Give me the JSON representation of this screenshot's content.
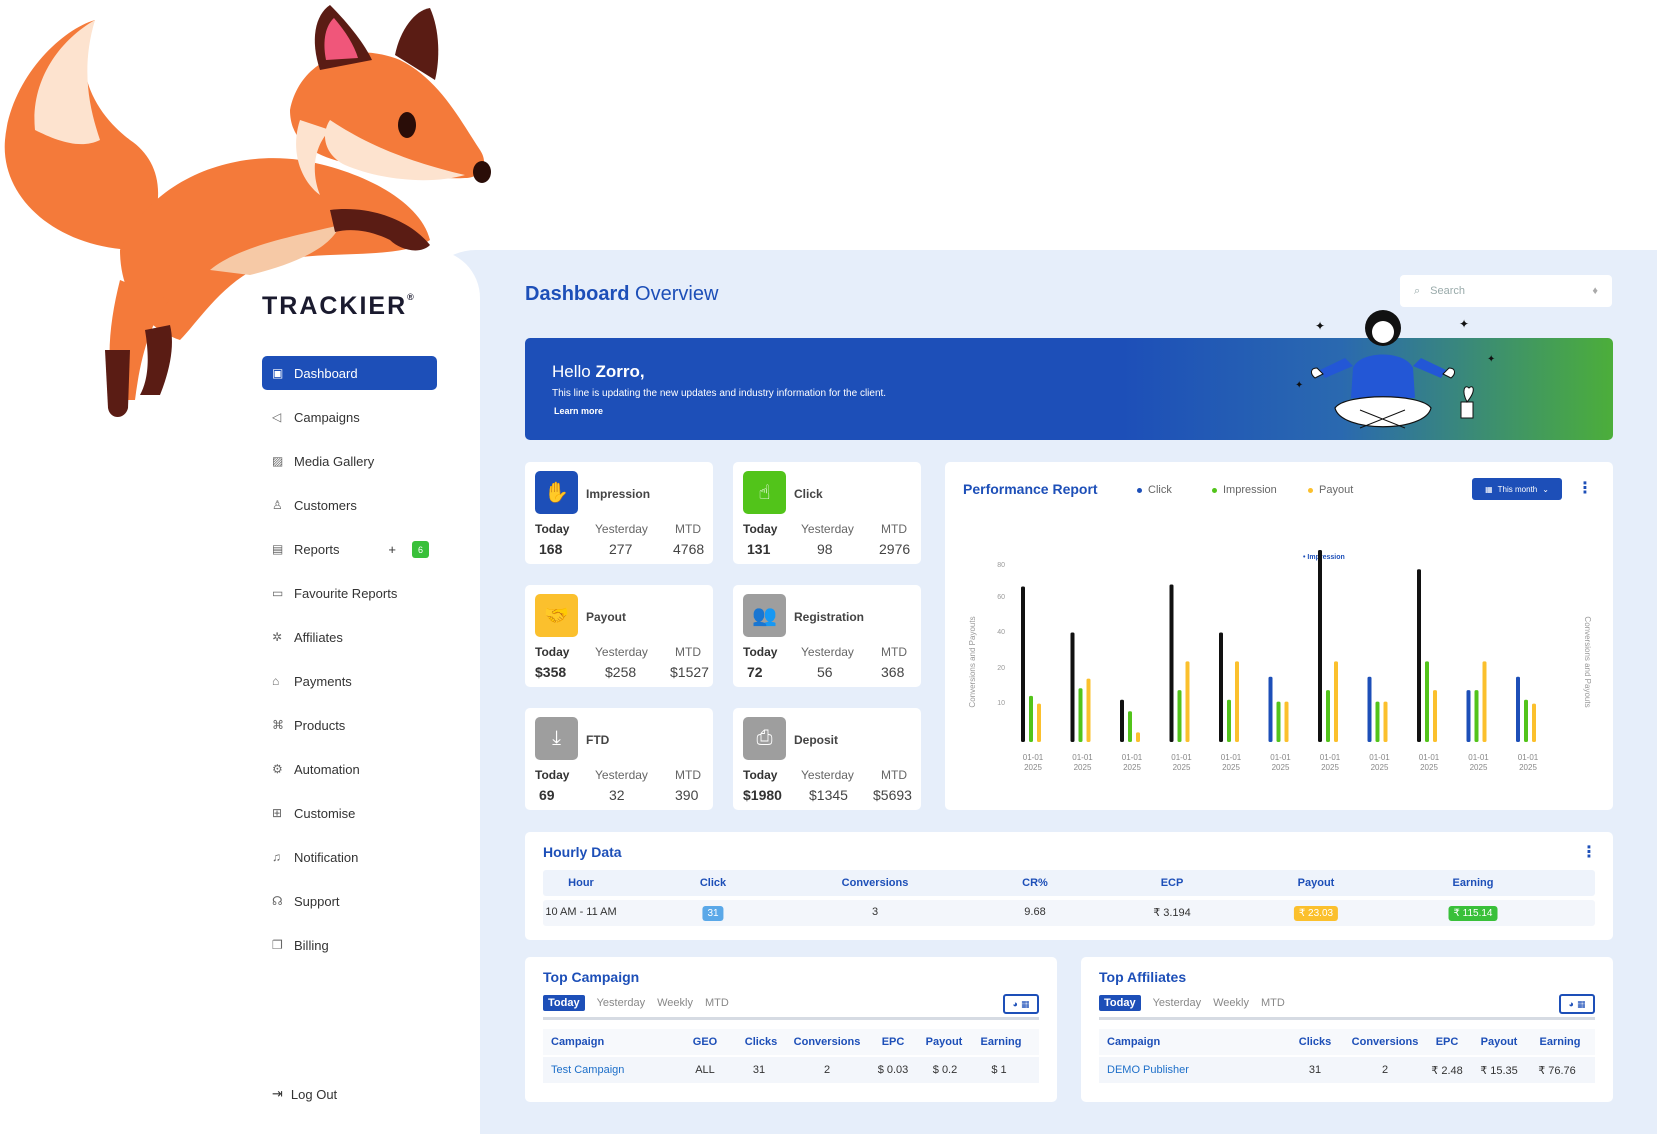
{
  "brand": {
    "logo_text": "TRACKIER"
  },
  "sidebar": {
    "items": [
      {
        "label": "Dashboard",
        "icon": "dashboard-icon",
        "active": true
      },
      {
        "label": "Campaigns",
        "icon": "megaphone-icon"
      },
      {
        "label": "Media Gallery",
        "icon": "image-icon"
      },
      {
        "label": "Customers",
        "icon": "user-icon"
      },
      {
        "label": "Reports",
        "icon": "report-icon",
        "badge": "6"
      },
      {
        "label": "Favourite Reports",
        "icon": "favourite-report-icon"
      },
      {
        "label": "Affiliates",
        "icon": "affiliates-icon"
      },
      {
        "label": "Payments",
        "icon": "bank-icon"
      },
      {
        "label": "Products",
        "icon": "command-icon"
      },
      {
        "label": "Automation",
        "icon": "gear-icon"
      },
      {
        "label": "Customise",
        "icon": "grid-icon"
      },
      {
        "label": "Notification",
        "icon": "bell-icon"
      },
      {
        "label": "Support",
        "icon": "headset-icon"
      },
      {
        "label": "Billing",
        "icon": "billing-icon"
      }
    ],
    "logout": "Log Out",
    "reports_plus": "+"
  },
  "header": {
    "title_bold": "Dashboard",
    "title_rest": "Overview",
    "search_placeholder": "Search"
  },
  "banner": {
    "hello": "Hello",
    "name": "Zorro,",
    "subtitle": "This line is updating the new updates and industry information for the client.",
    "link": "Learn more"
  },
  "stats": {
    "today_label": "Today",
    "yesterday_label": "Yesterday",
    "mtd_label": "MTD",
    "cards": [
      {
        "title": "Impression",
        "today": "168",
        "yesterday": "277",
        "mtd": "4768",
        "color": "#1d4fb8",
        "icon": "hand-icon"
      },
      {
        "title": "Click",
        "today": "131",
        "yesterday": "98",
        "mtd": "2976",
        "color": "#52c41a",
        "icon": "pointer-icon"
      },
      {
        "title": "Payout",
        "today": "$358",
        "yesterday": "$258",
        "mtd": "$1527",
        "color": "#fbc02d",
        "icon": "handshake-icon"
      },
      {
        "title": "Registration",
        "today": "72",
        "yesterday": "56",
        "mtd": "368",
        "color": "#9e9e9e",
        "icon": "users-icon"
      },
      {
        "title": "FTD",
        "today": "69",
        "yesterday": "32",
        "mtd": "390",
        "color": "#9e9e9e",
        "icon": "download-icon"
      },
      {
        "title": "Deposit",
        "today": "$1980",
        "yesterday": "$1345",
        "mtd": "$5693",
        "color": "#9e9e9e",
        "icon": "inbox-icon"
      }
    ]
  },
  "performance": {
    "title": "Performance Report",
    "legend": [
      "Click",
      "Impression",
      "Payout"
    ],
    "range_button": "This month",
    "chart_data": {
      "type": "bar",
      "categories": [
        "01-01 2025",
        "01-01 2025",
        "01-01 2025",
        "01-01 2025",
        "01-01 2025",
        "01-01 2025",
        "01-01 2025",
        "01-01 2025",
        "01-01 2025",
        "01-01 2025",
        "01-01 2025"
      ],
      "yticks": [
        "10",
        "20",
        "40",
        "60",
        "80"
      ],
      "ylabel_left": "Conversions and Payouts",
      "ylabel_right": "Conversions and Payouts",
      "annotation": "Impression",
      "series": [
        {
          "values": [
            81,
            57,
            22,
            82,
            57,
            0,
            100,
            0,
            90,
            0,
            0
          ]
        },
        {
          "values": [
            0,
            0,
            0,
            0,
            0,
            34,
            0,
            34,
            0,
            27,
            34
          ]
        },
        {
          "values": [
            24,
            28,
            16,
            27,
            22,
            21,
            27,
            21,
            42,
            27,
            22
          ]
        },
        {
          "values": [
            20,
            33,
            5,
            42,
            42,
            21,
            42,
            21,
            27,
            42,
            20
          ]
        }
      ],
      "series_colors": [
        "#111111",
        "#1d4fb8",
        "#52c41a",
        "#fbc02d"
      ]
    }
  },
  "hourly": {
    "title": "Hourly Data",
    "columns": [
      "Hour",
      "Click",
      "Conversions",
      "CR%",
      "ECP",
      "Payout",
      "Earning"
    ],
    "row": {
      "hour": "10 AM - 11 AM",
      "click": "31",
      "conversions": "3",
      "cr": "9.68",
      "ecp": "₹ 3.194",
      "payout": "₹ 23.03",
      "earning": "₹ 115.14"
    }
  },
  "top_campaign": {
    "title": "Top Campaign",
    "tabs": [
      "Today",
      "Yesterday",
      "Weekly",
      "MTD"
    ],
    "columns": [
      "Campaign",
      "GEO",
      "Clicks",
      "Conversions",
      "EPC",
      "Payout",
      "Earning"
    ],
    "row": {
      "campaign": "Test Campaign",
      "geo": "ALL",
      "clicks": "31",
      "conversions": "2",
      "epc": "$ 0.03",
      "payout": "$ 0.2",
      "earning": "$ 1"
    }
  },
  "top_affiliates": {
    "title": "Top Affiliates",
    "tabs": [
      "Today",
      "Yesterday",
      "Weekly",
      "MTD"
    ],
    "columns": [
      "Campaign",
      "Clicks",
      "Conversions",
      "EPC",
      "Payout",
      "Earning"
    ],
    "row": {
      "campaign": "DEMO Publisher",
      "clicks": "31",
      "conversions": "2",
      "epc": "₹ 2.48",
      "payout": "₹ 15.35",
      "earning": "₹ 76.76"
    }
  }
}
